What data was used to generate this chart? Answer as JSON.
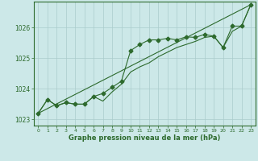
{
  "xlabel": "Graphe pression niveau de la mer (hPa)",
  "hours": [
    0,
    1,
    2,
    3,
    4,
    5,
    6,
    7,
    8,
    9,
    10,
    11,
    12,
    13,
    14,
    15,
    16,
    17,
    18,
    19,
    20,
    21,
    22,
    23
  ],
  "line1": [
    1023.2,
    1023.65,
    1023.45,
    1023.55,
    1023.5,
    1023.5,
    1023.75,
    1023.85,
    1024.05,
    1024.25,
    1025.25,
    1025.45,
    1025.6,
    1025.6,
    1025.65,
    1025.6,
    1025.7,
    1025.68,
    1025.78,
    1025.72,
    1025.35,
    1026.05,
    1026.05,
    1026.75
  ],
  "line2": [
    1023.2,
    1023.65,
    1023.45,
    1023.55,
    1023.5,
    1023.5,
    1023.75,
    1023.6,
    1023.9,
    1024.15,
    1024.55,
    1024.72,
    1024.85,
    1025.05,
    1025.2,
    1025.35,
    1025.45,
    1025.55,
    1025.68,
    1025.72,
    1025.35,
    1025.88,
    1026.05,
    1026.75
  ],
  "line3_x": [
    0,
    23
  ],
  "line3_y": [
    1023.2,
    1026.75
  ],
  "ylim": [
    1022.8,
    1026.85
  ],
  "yticks": [
    1023,
    1024,
    1025,
    1026
  ],
  "xticks": [
    0,
    1,
    2,
    3,
    4,
    5,
    6,
    7,
    8,
    9,
    10,
    11,
    12,
    13,
    14,
    15,
    16,
    17,
    18,
    19,
    20,
    21,
    22,
    23
  ],
  "line_color": "#2d6a2d",
  "bg_color": "#cce8e8",
  "grid_color": "#aacccc",
  "tick_label_color": "#2d6a2d",
  "xlabel_color": "#2d6a2d",
  "ylabel_color": "#2d6a2d",
  "spine_color": "#2d6a2d",
  "marker_size": 2.5,
  "linewidth": 0.8
}
